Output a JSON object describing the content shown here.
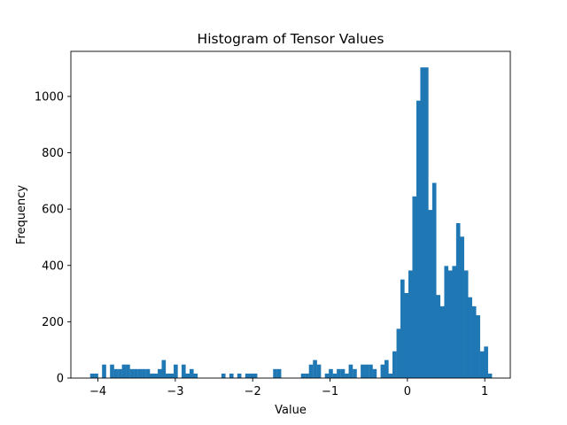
{
  "chart_data": {
    "type": "bar",
    "title": "Histogram of Tensor Values",
    "xlabel": "Value",
    "ylabel": "Frequency",
    "xlim": [
      -4.35,
      1.33
    ],
    "ylim": [
      0,
      1160
    ],
    "bar_color": "#1f77b4",
    "bin_width": 0.0514,
    "grid": false,
    "x_ticks": [
      {
        "value": -4,
        "label": "−4"
      },
      {
        "value": -3,
        "label": "−3"
      },
      {
        "value": -2,
        "label": "−2"
      },
      {
        "value": -1,
        "label": "−1"
      },
      {
        "value": 0,
        "label": "0"
      },
      {
        "value": 1,
        "label": "1"
      }
    ],
    "y_ticks": [
      {
        "value": 0,
        "label": "0"
      },
      {
        "value": 200,
        "label": "200"
      },
      {
        "value": 400,
        "label": "400"
      },
      {
        "value": 600,
        "label": "600"
      },
      {
        "value": 800,
        "label": "800"
      },
      {
        "value": 1000,
        "label": "1000"
      }
    ],
    "bins": [
      {
        "x": -4.101,
        "y": 16
      },
      {
        "x": -4.05,
        "y": 16
      },
      {
        "x": -3.947,
        "y": 48
      },
      {
        "x": -3.844,
        "y": 48
      },
      {
        "x": -3.793,
        "y": 32
      },
      {
        "x": -3.741,
        "y": 32
      },
      {
        "x": -3.69,
        "y": 48
      },
      {
        "x": -3.639,
        "y": 48
      },
      {
        "x": -3.587,
        "y": 32
      },
      {
        "x": -3.536,
        "y": 32
      },
      {
        "x": -3.484,
        "y": 32
      },
      {
        "x": -3.433,
        "y": 32
      },
      {
        "x": -3.381,
        "y": 32
      },
      {
        "x": -3.33,
        "y": 16
      },
      {
        "x": -3.279,
        "y": 16
      },
      {
        "x": -3.227,
        "y": 32
      },
      {
        "x": -3.176,
        "y": 64
      },
      {
        "x": -3.124,
        "y": 16
      },
      {
        "x": -3.073,
        "y": 16
      },
      {
        "x": -3.021,
        "y": 48
      },
      {
        "x": -2.919,
        "y": 48
      },
      {
        "x": -2.867,
        "y": 16
      },
      {
        "x": -2.816,
        "y": 32
      },
      {
        "x": -2.764,
        "y": 16
      },
      {
        "x": -2.404,
        "y": 16
      },
      {
        "x": -2.301,
        "y": 16
      },
      {
        "x": -2.199,
        "y": 16
      },
      {
        "x": -2.096,
        "y": 16
      },
      {
        "x": -2.044,
        "y": 16
      },
      {
        "x": -1.993,
        "y": 16
      },
      {
        "x": -1.736,
        "y": 32
      },
      {
        "x": -1.684,
        "y": 32
      },
      {
        "x": -1.376,
        "y": 16
      },
      {
        "x": -1.324,
        "y": 16
      },
      {
        "x": -1.273,
        "y": 48
      },
      {
        "x": -1.221,
        "y": 64
      },
      {
        "x": -1.17,
        "y": 48
      },
      {
        "x": -1.067,
        "y": 16
      },
      {
        "x": -1.016,
        "y": 32
      },
      {
        "x": -0.964,
        "y": 16
      },
      {
        "x": -0.913,
        "y": 32
      },
      {
        "x": -0.861,
        "y": 32
      },
      {
        "x": -0.81,
        "y": 16
      },
      {
        "x": -0.759,
        "y": 48
      },
      {
        "x": -0.707,
        "y": 32
      },
      {
        "x": -0.604,
        "y": 48
      },
      {
        "x": -0.553,
        "y": 48
      },
      {
        "x": -0.501,
        "y": 48
      },
      {
        "x": -0.45,
        "y": 32
      },
      {
        "x": -0.347,
        "y": 48
      },
      {
        "x": -0.296,
        "y": 64
      },
      {
        "x": -0.244,
        "y": 16
      },
      {
        "x": -0.193,
        "y": 95
      },
      {
        "x": -0.141,
        "y": 175
      },
      {
        "x": -0.09,
        "y": 350
      },
      {
        "x": -0.039,
        "y": 302
      },
      {
        "x": 0.013,
        "y": 382
      },
      {
        "x": 0.064,
        "y": 645
      },
      {
        "x": 0.116,
        "y": 985
      },
      {
        "x": 0.167,
        "y": 1103
      },
      {
        "x": 0.219,
        "y": 1103
      },
      {
        "x": 0.27,
        "y": 597
      },
      {
        "x": 0.321,
        "y": 693
      },
      {
        "x": 0.373,
        "y": 295
      },
      {
        "x": 0.424,
        "y": 255
      },
      {
        "x": 0.476,
        "y": 398
      },
      {
        "x": 0.527,
        "y": 382
      },
      {
        "x": 0.579,
        "y": 398
      },
      {
        "x": 0.63,
        "y": 550
      },
      {
        "x": 0.681,
        "y": 502
      },
      {
        "x": 0.733,
        "y": 382
      },
      {
        "x": 0.784,
        "y": 287
      },
      {
        "x": 0.836,
        "y": 255
      },
      {
        "x": 0.887,
        "y": 223
      },
      {
        "x": 0.939,
        "y": 95
      },
      {
        "x": 0.99,
        "y": 112
      },
      {
        "x": 1.041,
        "y": 16
      }
    ]
  }
}
